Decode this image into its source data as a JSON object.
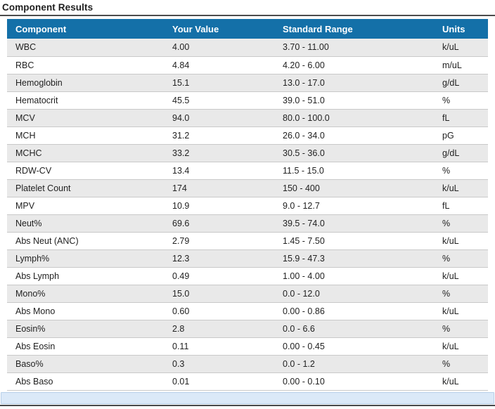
{
  "page": {
    "title": "Component Results"
  },
  "table": {
    "columns": [
      "Component",
      "Your Value",
      "Standard Range",
      "Units"
    ],
    "rows": [
      {
        "component": "WBC",
        "value": "4.00",
        "range": "3.70 - 11.00",
        "units": "k/uL"
      },
      {
        "component": "RBC",
        "value": "4.84",
        "range": "4.20 - 6.00",
        "units": "m/uL"
      },
      {
        "component": "Hemoglobin",
        "value": "15.1",
        "range": "13.0 - 17.0",
        "units": "g/dL"
      },
      {
        "component": "Hematocrit",
        "value": "45.5",
        "range": "39.0 - 51.0",
        "units": "%"
      },
      {
        "component": "MCV",
        "value": "94.0",
        "range": "80.0 - 100.0",
        "units": "fL"
      },
      {
        "component": "MCH",
        "value": "31.2",
        "range": "26.0 - 34.0",
        "units": "pG"
      },
      {
        "component": "MCHC",
        "value": "33.2",
        "range": "30.5 - 36.0",
        "units": "g/dL"
      },
      {
        "component": "RDW-CV",
        "value": "13.4",
        "range": "11.5 - 15.0",
        "units": "%"
      },
      {
        "component": "Platelet Count",
        "value": "174",
        "range": "150 - 400",
        "units": "k/uL"
      },
      {
        "component": "MPV",
        "value": "10.9",
        "range": "9.0 - 12.7",
        "units": "fL"
      },
      {
        "component": "Neut%",
        "value": "69.6",
        "range": "39.5 - 74.0",
        "units": "%"
      },
      {
        "component": "Abs Neut (ANC)",
        "value": "2.79",
        "range": "1.45 - 7.50",
        "units": "k/uL"
      },
      {
        "component": "Lymph%",
        "value": "12.3",
        "range": "15.9 - 47.3",
        "units": "%"
      },
      {
        "component": "Abs Lymph",
        "value": "0.49",
        "range": "1.00 - 4.00",
        "units": "k/uL"
      },
      {
        "component": "Mono%",
        "value": "15.0",
        "range": "0.0 - 12.0",
        "units": "%"
      },
      {
        "component": "Abs Mono",
        "value": "0.60",
        "range": "0.00 - 0.86",
        "units": "k/uL"
      },
      {
        "component": "Eosin%",
        "value": "2.8",
        "range": "0.0 - 6.6",
        "units": "%"
      },
      {
        "component": "Abs Eosin",
        "value": "0.11",
        "range": "0.00 - 0.45",
        "units": "k/uL"
      },
      {
        "component": "Baso%",
        "value": "0.3",
        "range": "0.0 - 1.2",
        "units": "%"
      },
      {
        "component": "Abs Baso",
        "value": "0.01",
        "range": "0.00 - 0.10",
        "units": "k/uL"
      }
    ]
  },
  "colors": {
    "header_bg": "#1470a8",
    "row_alt_bg": "#e9e9e9",
    "footer_bg": "#dbe9f8",
    "title_rule": "#4c4c4c"
  }
}
